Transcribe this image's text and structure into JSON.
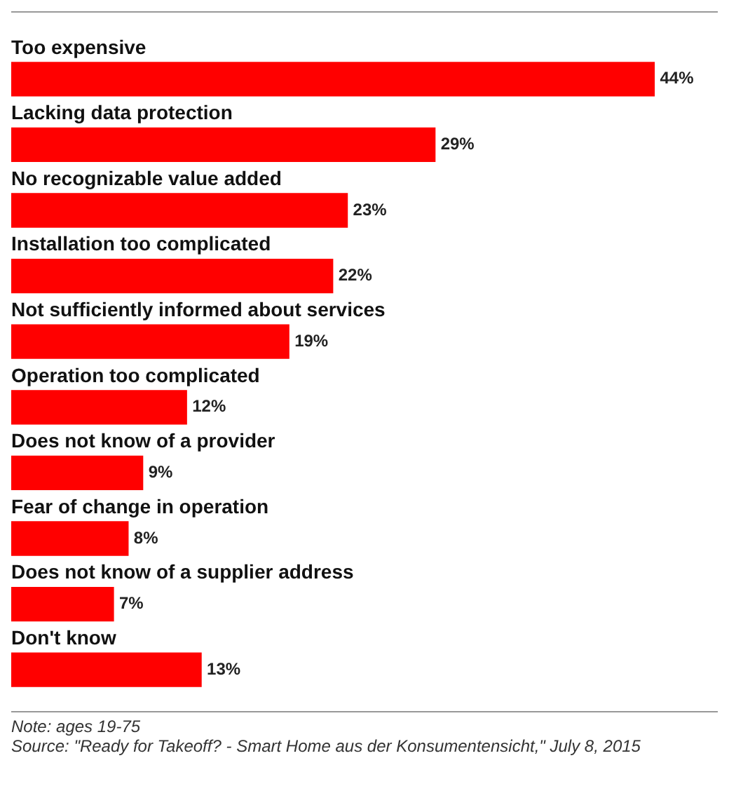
{
  "chart_data": {
    "type": "bar",
    "orientation": "horizontal",
    "categories": [
      "Too expensive",
      "Lacking data protection",
      "No recognizable value added",
      "Installation too complicated",
      "Not sufficiently informed about services",
      "Operation too complicated",
      "Does not know of a provider",
      "Fear of change in operation",
      "Does not know of a supplier address",
      "Don't know"
    ],
    "values": [
      44,
      29,
      23,
      22,
      19,
      12,
      9,
      8,
      7,
      13
    ],
    "color": "#ff0000",
    "value_labels": [
      "44%",
      "29%",
      "23%",
      "22%",
      "19%",
      "12%",
      "9%",
      "8%",
      "7%",
      "13%"
    ],
    "annotations": [
      "Note: ages 19-75",
      "Source: \"Ready for Takeoff? - Smart Home aus der Konsumentensicht,\" July 8, 2015"
    ]
  }
}
